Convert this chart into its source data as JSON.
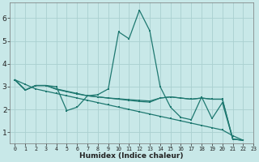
{
  "bg_color": "#c8e8e8",
  "grid_color": "#aad0d0",
  "line_color": "#1e7870",
  "xlabel": "Humidex (Indice chaleur)",
  "x": [
    0,
    1,
    2,
    3,
    4,
    5,
    6,
    7,
    8,
    9,
    10,
    11,
    12,
    13,
    14,
    15,
    16,
    17,
    18,
    19,
    20,
    21,
    22
  ],
  "y_main": [
    3.3,
    2.85,
    3.05,
    3.05,
    3.0,
    1.95,
    2.1,
    2.6,
    2.65,
    2.9,
    5.4,
    5.1,
    6.35,
    5.45,
    3.0,
    2.1,
    1.65,
    1.55,
    2.55,
    1.6,
    2.3,
    0.7,
    0.65
  ],
  "y_trend": [
    3.3,
    3.1,
    2.9,
    2.8,
    2.7,
    2.6,
    2.5,
    2.4,
    2.3,
    2.2,
    2.1,
    2.0,
    1.9,
    1.8,
    1.7,
    1.6,
    1.5,
    1.4,
    1.3,
    1.2,
    1.1,
    0.85,
    0.65
  ],
  "y_flat1": [
    3.3,
    2.85,
    3.05,
    3.05,
    2.9,
    2.8,
    2.7,
    2.6,
    2.55,
    2.5,
    2.45,
    2.4,
    2.35,
    2.32,
    2.5,
    2.55,
    2.5,
    2.45,
    2.5,
    2.45,
    2.45,
    0.7,
    0.65
  ],
  "y_flat2": [
    3.3,
    2.85,
    3.05,
    3.05,
    2.88,
    2.78,
    2.68,
    2.6,
    2.55,
    2.5,
    2.47,
    2.43,
    2.4,
    2.37,
    2.5,
    2.55,
    2.5,
    2.45,
    2.5,
    2.45,
    2.45,
    0.7,
    0.65
  ],
  "xlim": [
    -0.5,
    23.0
  ],
  "ylim": [
    0.5,
    6.7
  ],
  "yticks": [
    1,
    2,
    3,
    4,
    5,
    6
  ]
}
